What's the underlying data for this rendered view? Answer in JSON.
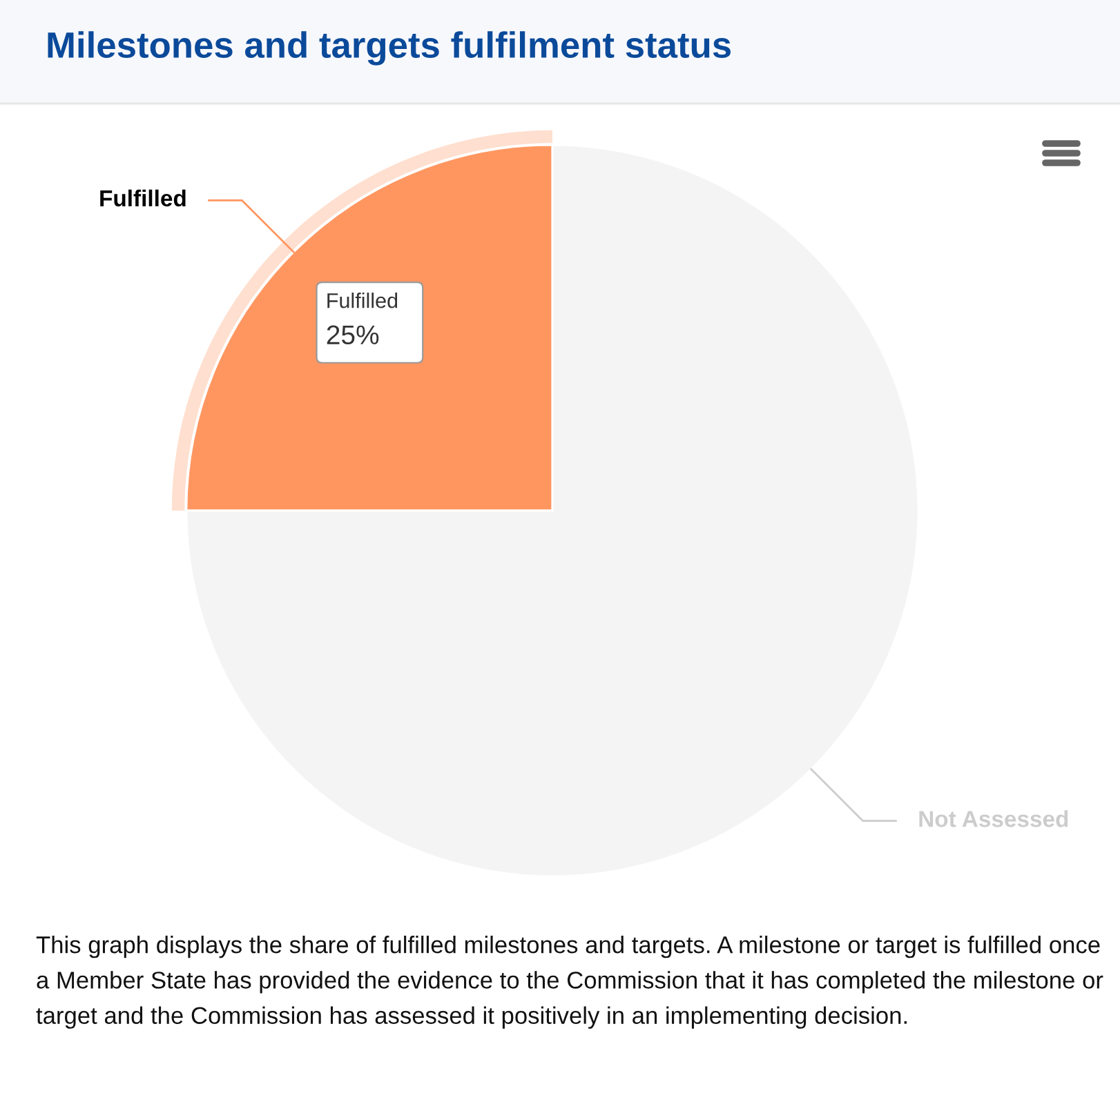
{
  "chart_data": {
    "type": "pie",
    "title": "Milestones and targets fulfilment status",
    "categories": [
      "Fulfilled",
      "Not Assessed"
    ],
    "values": [
      25,
      75
    ],
    "colors": [
      "#ff9660",
      "#f4f4f4"
    ],
    "value_labels": [
      "25%",
      null
    ],
    "legend": false,
    "annotations": [
      "This graph displays the share of fulfilled milestones and targets. A milestone or target is fulfilled once a Member State has provided the evidence to the Commission that it has completed the milestone or target and the Commission has assessed it positively in an implementing decision."
    ]
  }
}
